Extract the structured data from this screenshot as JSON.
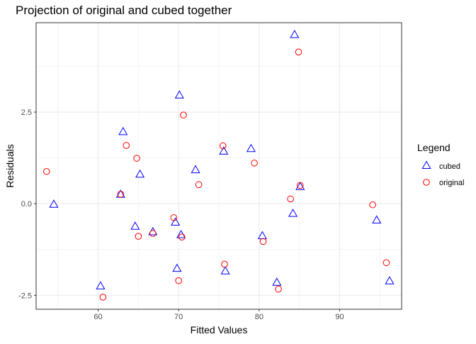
{
  "chart_data": {
    "type": "scatter",
    "title": "Projection of original and cubed together",
    "xlabel": "Fitted Values",
    "ylabel": "Residuals",
    "xlim": [
      52.3,
      97.7
    ],
    "ylim": [
      -2.88,
      4.94
    ],
    "xticks": [
      60,
      70,
      80,
      90
    ],
    "yticks": [
      -2.5,
      0.0,
      2.5
    ],
    "xtick_labels": [
      "60",
      "70",
      "80",
      "90"
    ],
    "ytick_labels": [
      "-2.5",
      "0.0",
      "2.5"
    ],
    "grid": true,
    "legend": {
      "title": "Legend",
      "position": "right",
      "entries": [
        "cubed",
        "original"
      ]
    },
    "series": [
      {
        "name": "cubed",
        "marker": "triangle",
        "color": "#0000ff",
        "points": [
          [
            54.5,
            -0.01
          ],
          [
            60.3,
            -2.24
          ],
          [
            62.8,
            0.26
          ],
          [
            63.1,
            1.97
          ],
          [
            64.6,
            -0.61
          ],
          [
            65.2,
            0.81
          ],
          [
            66.8,
            -0.76
          ],
          [
            69.6,
            -0.5
          ],
          [
            69.8,
            -1.76
          ],
          [
            70.1,
            2.97
          ],
          [
            70.3,
            -0.84
          ],
          [
            72.1,
            0.93
          ],
          [
            75.6,
            1.44
          ],
          [
            75.8,
            -1.83
          ],
          [
            79.0,
            1.51
          ],
          [
            80.4,
            -0.87
          ],
          [
            82.2,
            -2.14
          ],
          [
            84.2,
            -0.26
          ],
          [
            84.4,
            4.62
          ],
          [
            85.1,
            0.47
          ],
          [
            94.6,
            -0.44
          ],
          [
            96.2,
            -2.1
          ]
        ]
      },
      {
        "name": "original",
        "marker": "circle",
        "color": "#ff0000",
        "points": [
          [
            53.6,
            0.88
          ],
          [
            60.6,
            -2.55
          ],
          [
            62.8,
            0.26
          ],
          [
            63.5,
            1.59
          ],
          [
            64.8,
            1.24
          ],
          [
            65.0,
            -0.89
          ],
          [
            66.8,
            -0.81
          ],
          [
            69.4,
            -0.38
          ],
          [
            70.0,
            -2.1
          ],
          [
            70.4,
            -0.91
          ],
          [
            70.6,
            2.42
          ],
          [
            72.5,
            0.52
          ],
          [
            75.5,
            1.58
          ],
          [
            75.7,
            -1.65
          ],
          [
            79.4,
            1.11
          ],
          [
            80.5,
            -1.03
          ],
          [
            82.4,
            -2.33
          ],
          [
            83.9,
            0.13
          ],
          [
            84.9,
            4.14
          ],
          [
            85.1,
            0.5
          ],
          [
            94.1,
            -0.03
          ],
          [
            95.8,
            -1.61
          ]
        ]
      }
    ]
  }
}
